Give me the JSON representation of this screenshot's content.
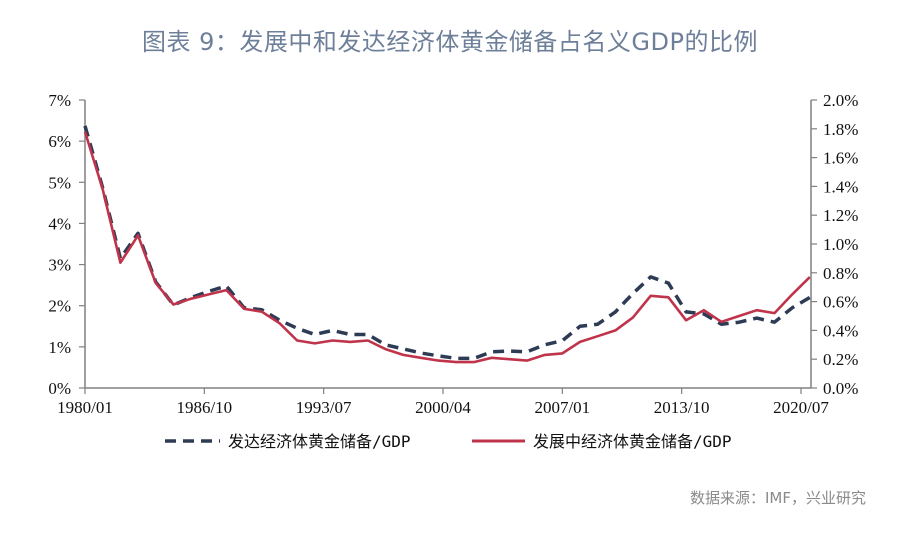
{
  "title": "图表 9：发展中和发达经济体黄金储备占名义GDP的比例",
  "source": "数据来源：IMF，兴业研究",
  "chart_data": {
    "type": "line",
    "title": "图表 9：发展中和发达经济体黄金储备占名义GDP的比例",
    "xlabel": "",
    "ylabel_left": "",
    "ylabel_right": "",
    "x_tick_labels": [
      "1980/01",
      "1986/10",
      "1993/07",
      "2000/04",
      "2007/01",
      "2013/10",
      "2020/07"
    ],
    "y_left_ticks": [
      "0%",
      "1%",
      "2%",
      "3%",
      "4%",
      "5%",
      "6%",
      "7%"
    ],
    "y_right_ticks": [
      "0.0%",
      "0.2%",
      "0.4%",
      "0.6%",
      "0.8%",
      "1.0%",
      "1.2%",
      "1.4%",
      "1.6%",
      "1.8%",
      "2.0%"
    ],
    "ylim_left": [
      0,
      7
    ],
    "ylim_right": [
      0,
      2.0
    ],
    "grid": false,
    "legend_position": "bottom",
    "x": [
      1980,
      1981,
      1982,
      1983,
      1984,
      1985,
      1986,
      1987,
      1988,
      1989,
      1990,
      1991,
      1992,
      1993,
      1994,
      1995,
      1996,
      1997,
      1998,
      1999,
      2000,
      2001,
      2002,
      2003,
      2004,
      2005,
      2006,
      2007,
      2008,
      2009,
      2010,
      2011,
      2012,
      2013,
      2014,
      2015,
      2016,
      2017,
      2018,
      2019,
      2020,
      2021
    ],
    "series": [
      {
        "name": "发达经济体黄金储备/GDP",
        "axis": "left",
        "style": "dashed",
        "color": "#2d3b55",
        "values": [
          6.37,
          4.86,
          3.15,
          3.76,
          2.58,
          2.02,
          2.2,
          2.35,
          2.48,
          1.95,
          1.9,
          1.65,
          1.45,
          1.3,
          1.4,
          1.3,
          1.3,
          1.05,
          0.95,
          0.85,
          0.78,
          0.72,
          0.72,
          0.88,
          0.9,
          0.88,
          1.05,
          1.15,
          1.5,
          1.55,
          1.85,
          2.3,
          2.7,
          2.55,
          1.85,
          1.8,
          1.55,
          1.6,
          1.7,
          1.6,
          1.95,
          2.2
        ]
      },
      {
        "name": "发展中经济体黄金储备/GDP",
        "axis": "right",
        "style": "solid",
        "color": "#c0344b",
        "values": [
          1.78,
          1.38,
          0.87,
          1.06,
          0.73,
          0.58,
          0.62,
          0.65,
          0.68,
          0.55,
          0.53,
          0.45,
          0.33,
          0.31,
          0.33,
          0.32,
          0.33,
          0.27,
          0.23,
          0.21,
          0.19,
          0.18,
          0.18,
          0.21,
          0.2,
          0.19,
          0.23,
          0.24,
          0.32,
          0.36,
          0.4,
          0.49,
          0.64,
          0.63,
          0.47,
          0.54,
          0.46,
          0.5,
          0.54,
          0.52,
          0.65,
          0.77
        ]
      }
    ]
  },
  "legend": {
    "developed": "发达经济体黄金储备/GDP",
    "developing": "发展中经济体黄金储备/GDP"
  }
}
